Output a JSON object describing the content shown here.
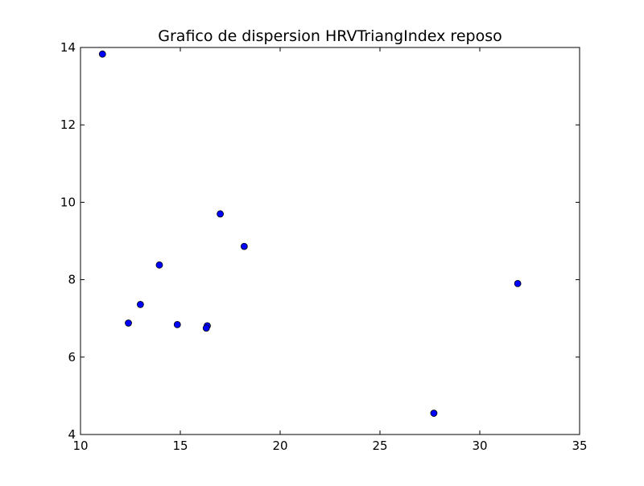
{
  "chart_data": {
    "type": "scatter",
    "title": "Grafico de dispersion HRVTriangIndex reposo",
    "xlabel": "",
    "ylabel": "",
    "xlim": [
      10,
      35
    ],
    "ylim": [
      4,
      14
    ],
    "xticks": [
      10,
      15,
      20,
      25,
      30,
      35
    ],
    "yticks": [
      4,
      6,
      8,
      10,
      12,
      14
    ],
    "grid": false,
    "marker_color": "#0000ff",
    "points": [
      {
        "x": 11.1,
        "y": 13.83
      },
      {
        "x": 12.4,
        "y": 6.88
      },
      {
        "x": 13.0,
        "y": 7.36
      },
      {
        "x": 13.95,
        "y": 8.38
      },
      {
        "x": 14.85,
        "y": 6.84
      },
      {
        "x": 16.35,
        "y": 6.81
      },
      {
        "x": 16.3,
        "y": 6.75
      },
      {
        "x": 17.0,
        "y": 9.7
      },
      {
        "x": 18.2,
        "y": 8.86
      },
      {
        "x": 27.7,
        "y": 4.55
      },
      {
        "x": 31.9,
        "y": 7.9
      }
    ]
  }
}
